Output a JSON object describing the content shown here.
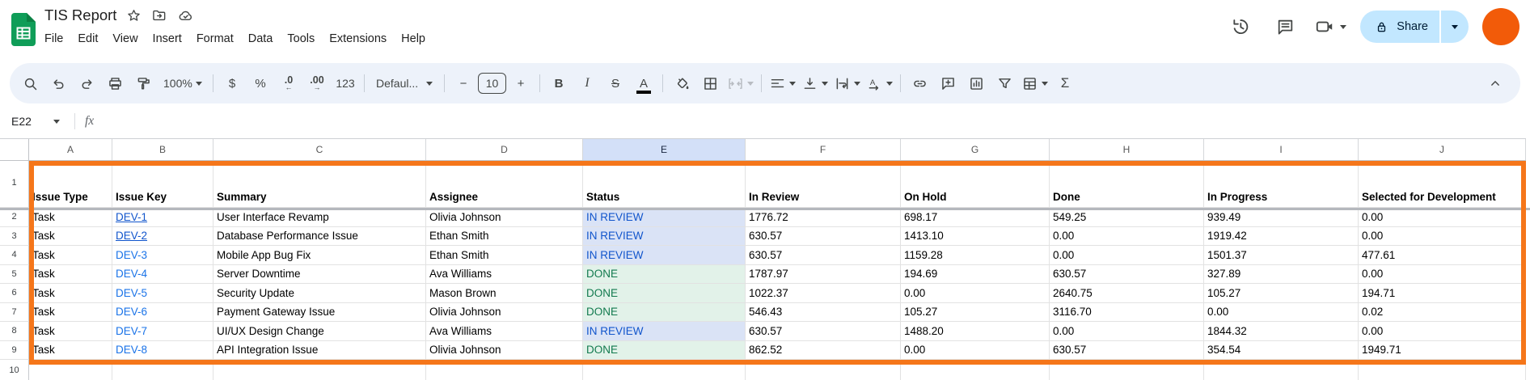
{
  "app": {
    "title": "TIS Report",
    "menus": [
      "File",
      "Edit",
      "View",
      "Insert",
      "Format",
      "Data",
      "Tools",
      "Extensions",
      "Help"
    ],
    "share_label": "Share",
    "colors": {
      "logo_green": "#0f9d58",
      "logo_fold": "#0b8043",
      "share_bg": "#c2e7ff",
      "share_text": "#001d35",
      "avatar": "#f25b09",
      "selected_column_bg": "#d3e0f8",
      "range_border": "#f5761a"
    }
  },
  "toolbar": {
    "zoom_level": "100%",
    "currency_label": "$",
    "percent_label": "%",
    "decrease_decimal_label": ".0",
    "decrease_decimal_arrow": "←",
    "increase_decimal_label": ".00",
    "increase_decimal_arrow": "→",
    "more_formats_label": "123",
    "font_name": "Defaul...",
    "minus_label": "−",
    "font_size": "10",
    "plus_label": "+",
    "bold_label": "B",
    "italic_label": "I",
    "strikethrough_label": "S",
    "text_color_label": "A",
    "functions_label": "Σ"
  },
  "formula_bar": {
    "cell_reference": "E22",
    "fx_label": "fx"
  },
  "sheet": {
    "col_letters": [
      "A",
      "B",
      "C",
      "D",
      "E",
      "F",
      "G",
      "H",
      "I",
      "J"
    ],
    "selected_column": "E",
    "header_row_number": "1",
    "next_row_number": "10",
    "headers": [
      "Issue Type",
      "Issue Key",
      "Summary",
      "Assignee",
      "Status",
      "In Review",
      "On Hold",
      "Done",
      "In Progress",
      "Selected for Development"
    ],
    "link_color_underlined": "#1155cc",
    "link_color": "#1a73e8",
    "status_styles": {
      "IN REVIEW": {
        "bg": "#dae3f6",
        "text": "#1155cc"
      },
      "DONE": {
        "bg": "#e2f2e9",
        "text": "#127a4e"
      }
    },
    "rows": [
      {
        "n": "2",
        "issue_type": "Task",
        "issue_key": "DEV-1",
        "key_underline": true,
        "summary": "User Interface Revamp",
        "assignee": "Olivia Johnson",
        "status": "IN REVIEW",
        "values": [
          "1776.72",
          "698.17",
          "549.25",
          "939.49",
          "0.00"
        ]
      },
      {
        "n": "3",
        "issue_type": "Task",
        "issue_key": "DEV-2",
        "key_underline": true,
        "summary": "Database Performance Issue",
        "assignee": "Ethan Smith",
        "status": "IN REVIEW",
        "values": [
          "630.57",
          "1413.10",
          "0.00",
          "1919.42",
          "0.00"
        ]
      },
      {
        "n": "4",
        "issue_type": "Task",
        "issue_key": "DEV-3",
        "key_underline": false,
        "summary": "Mobile App Bug Fix",
        "assignee": "Ethan Smith",
        "status": "IN REVIEW",
        "values": [
          "630.57",
          "1159.28",
          "0.00",
          "1501.37",
          "477.61"
        ]
      },
      {
        "n": "5",
        "issue_type": "Task",
        "issue_key": "DEV-4",
        "key_underline": false,
        "summary": "Server Downtime",
        "assignee": "Ava Williams",
        "status": "DONE",
        "values": [
          "1787.97",
          "194.69",
          "630.57",
          "327.89",
          "0.00"
        ]
      },
      {
        "n": "6",
        "issue_type": "Task",
        "issue_key": "DEV-5",
        "key_underline": false,
        "summary": "Security Update",
        "assignee": "Mason Brown",
        "status": "DONE",
        "values": [
          "1022.37",
          "0.00",
          "2640.75",
          "105.27",
          "194.71"
        ]
      },
      {
        "n": "7",
        "issue_type": "Task",
        "issue_key": "DEV-6",
        "key_underline": false,
        "summary": "Payment Gateway Issue",
        "assignee": "Olivia Johnson",
        "status": "DONE",
        "values": [
          "546.43",
          "105.27",
          "3116.70",
          "0.00",
          "0.02"
        ]
      },
      {
        "n": "8",
        "issue_type": "Task",
        "issue_key": "DEV-7",
        "key_underline": false,
        "summary": "UI/UX Design Change",
        "assignee": "Ava Williams",
        "status": "IN REVIEW",
        "values": [
          "630.57",
          "1488.20",
          "0.00",
          "1844.32",
          "0.00"
        ]
      },
      {
        "n": "9",
        "issue_type": "Task",
        "issue_key": "DEV-8",
        "key_underline": false,
        "summary": "API Integration Issue",
        "assignee": "Olivia Johnson",
        "status": "DONE",
        "values": [
          "862.52",
          "0.00",
          "630.57",
          "354.54",
          "1949.71"
        ]
      }
    ]
  }
}
